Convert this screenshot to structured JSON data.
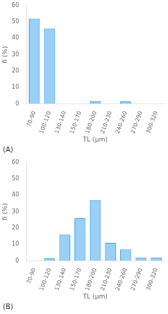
{
  "chart_data": [
    {
      "type": "bar",
      "categories": [
        "70-90",
        "100-120",
        "130-140",
        "150-170",
        "180-200",
        "210-230",
        "240-260",
        "270-290",
        "300-320"
      ],
      "values": [
        52,
        46,
        0,
        0,
        1.5,
        0,
        1.5,
        0,
        0
      ],
      "x_label": "TL (μm)",
      "y_label": "fi (%)",
      "annotations": [
        "(A)"
      ],
      "ylim": [
        0,
        60
      ],
      "yticks": [
        0,
        10,
        20,
        30,
        40,
        50,
        60
      ],
      "grid": false
    },
    {
      "type": "bar",
      "categories": [
        "70-90",
        "100-120",
        "130-140",
        "150-170",
        "180-200",
        "210-230",
        "240-260",
        "270-290",
        "300-320"
      ],
      "values": [
        0,
        1.5,
        16,
        26,
        37,
        11,
        7,
        2,
        2
      ],
      "x_label": "TL (μm)",
      "y_label": "fi (%)",
      "annotations": [
        "(B)"
      ],
      "ylim": [
        0,
        60
      ],
      "yticks": [
        0,
        10,
        20,
        30,
        40,
        50,
        60
      ],
      "grid": false
    }
  ]
}
